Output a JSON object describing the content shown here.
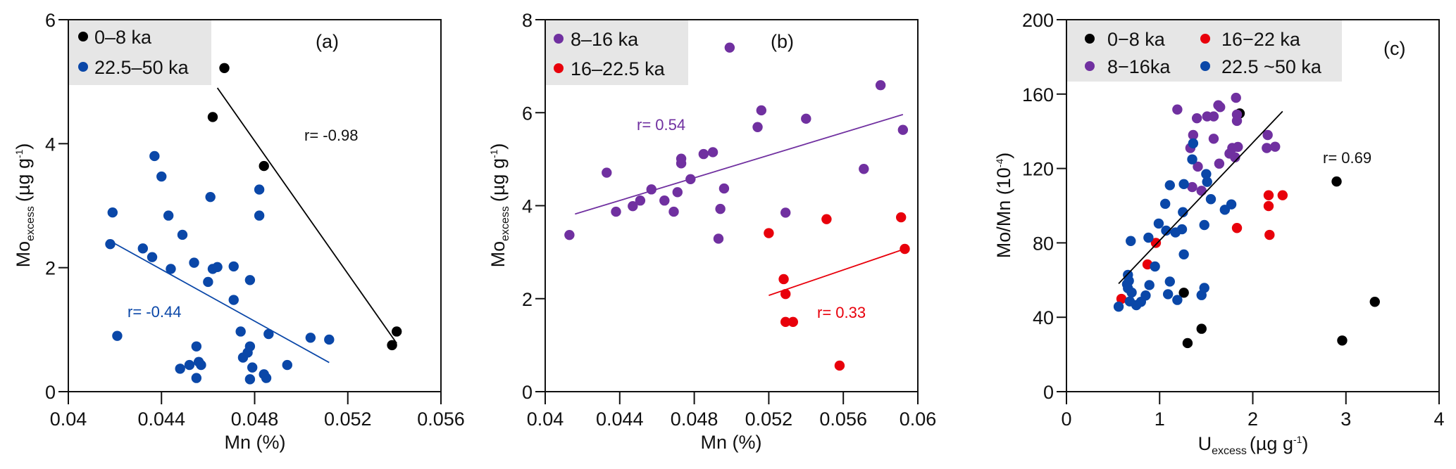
{
  "colors": {
    "black": "#000000",
    "purple": "#7030a0",
    "red": "#e8000b",
    "blue": "#0a47a8",
    "legend_bg": "#e6e6e6"
  },
  "chart_data": [
    {
      "type": "scatter",
      "panel_label": "(a)",
      "xlabel": "Mn (%)",
      "ylabel": {
        "main": "Mo",
        "sub": "excess",
        "unit": "(µg g",
        "sup": "-1",
        "close": ")"
      },
      "xlim": [
        0.04,
        0.056
      ],
      "ylim": [
        0,
        6
      ],
      "xticks": [
        0.04,
        0.044,
        0.048,
        0.052,
        0.056
      ],
      "xtick_labels": [
        "0.04",
        "0.044",
        "0.048",
        "0.052",
        "0.056"
      ],
      "yticks": [
        0,
        2,
        4,
        6
      ],
      "ytick_labels": [
        "0",
        "2",
        "4",
        "6"
      ],
      "legend_position": "top-left",
      "grid": false,
      "series": [
        {
          "name": "0–8 ka",
          "color_key": "black",
          "points": [
            [
              0.0467,
              5.22
            ],
            [
              0.0462,
              4.43
            ],
            [
              0.0484,
              3.64
            ],
            [
              0.0541,
              0.97
            ],
            [
              0.0539,
              0.75
            ]
          ],
          "fit": {
            "from": [
              0.0464,
              4.9
            ],
            "to": [
              0.0541,
              0.78
            ],
            "label": "r= -0.98",
            "label_color_key": "black"
          }
        },
        {
          "name": "22.5–50 ka",
          "color_key": "blue",
          "points": [
            [
              0.0437,
              3.8
            ],
            [
              0.044,
              3.47
            ],
            [
              0.0461,
              3.14
            ],
            [
              0.0482,
              3.26
            ],
            [
              0.0419,
              2.89
            ],
            [
              0.0443,
              2.84
            ],
            [
              0.0482,
              2.84
            ],
            [
              0.0449,
              2.53
            ],
            [
              0.0418,
              2.38
            ],
            [
              0.0432,
              2.31
            ],
            [
              0.0436,
              2.17
            ],
            [
              0.0444,
              1.98
            ],
            [
              0.0454,
              2.08
            ],
            [
              0.0462,
              1.98
            ],
            [
              0.0464,
              2.01
            ],
            [
              0.0471,
              2.02
            ],
            [
              0.046,
              1.77
            ],
            [
              0.0478,
              1.8
            ],
            [
              0.0471,
              1.48
            ],
            [
              0.0421,
              0.9
            ],
            [
              0.0474,
              0.97
            ],
            [
              0.0486,
              0.93
            ],
            [
              0.0504,
              0.87
            ],
            [
              0.0512,
              0.84
            ],
            [
              0.0455,
              0.73
            ],
            [
              0.0478,
              0.73
            ],
            [
              0.0477,
              0.63
            ],
            [
              0.0475,
              0.55
            ],
            [
              0.0448,
              0.37
            ],
            [
              0.0452,
              0.43
            ],
            [
              0.0456,
              0.48
            ],
            [
              0.0457,
              0.43
            ],
            [
              0.0455,
              0.22
            ],
            [
              0.0479,
              0.39
            ],
            [
              0.0494,
              0.43
            ],
            [
              0.0484,
              0.28
            ],
            [
              0.0485,
              0.22
            ],
            [
              0.0478,
              0.2
            ]
          ],
          "fit": {
            "from": [
              0.0417,
              2.45
            ],
            "to": [
              0.0512,
              0.47
            ],
            "label": "r= -0.44",
            "label_color_key": "blue"
          }
        }
      ]
    },
    {
      "type": "scatter",
      "panel_label": "(b)",
      "xlabel": "Mn (%)",
      "ylabel": {
        "main": "Mo",
        "sub": "excess",
        "unit": "(µg g",
        "sup": "-1",
        "close": ")"
      },
      "xlim": [
        0.04,
        0.06
      ],
      "ylim": [
        0,
        8
      ],
      "xticks": [
        0.04,
        0.044,
        0.048,
        0.052,
        0.056,
        0.06
      ],
      "xtick_labels": [
        "0.04",
        "0.044",
        "0.048",
        "0.052",
        "0.056",
        "0.06"
      ],
      "yticks": [
        0,
        2,
        4,
        6,
        8
      ],
      "ytick_labels": [
        "0",
        "2",
        "4",
        "6",
        "8"
      ],
      "legend_position": "top-left",
      "grid": false,
      "series": [
        {
          "name": "8–16 ka",
          "color_key": "purple",
          "points": [
            [
              0.0413,
              3.37
            ],
            [
              0.0433,
              4.71
            ],
            [
              0.0438,
              3.87
            ],
            [
              0.0447,
              3.99
            ],
            [
              0.0451,
              4.11
            ],
            [
              0.0457,
              4.35
            ],
            [
              0.0464,
              4.11
            ],
            [
              0.0469,
              3.87
            ],
            [
              0.0471,
              4.29
            ],
            [
              0.0473,
              4.91
            ],
            [
              0.0473,
              5.01
            ],
            [
              0.0478,
              4.57
            ],
            [
              0.0485,
              5.11
            ],
            [
              0.049,
              5.15
            ],
            [
              0.0496,
              4.37
            ],
            [
              0.0494,
              3.93
            ],
            [
              0.0493,
              3.29
            ],
            [
              0.0529,
              3.85
            ],
            [
              0.0571,
              4.79
            ],
            [
              0.0514,
              5.69
            ],
            [
              0.0516,
              6.05
            ],
            [
              0.054,
              5.87
            ],
            [
              0.058,
              6.59
            ],
            [
              0.0592,
              5.63
            ],
            [
              0.0499,
              7.4
            ]
          ],
          "fit": {
            "from": [
              0.0416,
              3.82
            ],
            "to": [
              0.0592,
              5.96
            ],
            "label": "r= 0.54",
            "label_color_key": "purple"
          }
        },
        {
          "name": "16–22.5 ka",
          "color_key": "red",
          "points": [
            [
              0.052,
              3.41
            ],
            [
              0.0551,
              3.71
            ],
            [
              0.0591,
              3.75
            ],
            [
              0.0593,
              3.07
            ],
            [
              0.0528,
              2.42
            ],
            [
              0.0529,
              2.1
            ],
            [
              0.0529,
              1.5
            ],
            [
              0.0533,
              1.5
            ],
            [
              0.0558,
              0.56
            ]
          ],
          "fit": {
            "from": [
              0.052,
              2.07
            ],
            "to": [
              0.0593,
              3.07
            ],
            "label": "r= 0.33",
            "label_color_key": "red"
          }
        }
      ]
    },
    {
      "type": "scatter",
      "panel_label": "(c)",
      "xlabel": {
        "main": "U",
        "sub": "excess",
        "unit": "(µg g",
        "sup": "-1",
        "close": ")"
      },
      "ylabel": {
        "main": "Mo/Mn (10",
        "sup": "-4",
        "close": ")"
      },
      "xlim": [
        0,
        4
      ],
      "ylim": [
        0,
        200
      ],
      "xticks": [
        0,
        1,
        2,
        3,
        4
      ],
      "xtick_labels": [
        "0",
        "1",
        "2",
        "3",
        "4"
      ],
      "yticks": [
        0,
        40,
        80,
        120,
        160,
        200
      ],
      "ytick_labels": [
        "0",
        "40",
        "80",
        "120",
        "160",
        "200"
      ],
      "legend_position": "top-left",
      "grid": false,
      "series": [
        {
          "name": "0−8 ka",
          "color_key": "black",
          "points": [
            [
              1.86,
              149.6
            ],
            [
              2.9,
              113
            ],
            [
              1.26,
              53.2
            ],
            [
              1.3,
              26.1
            ],
            [
              1.45,
              33.8
            ],
            [
              2.96,
              27.5
            ],
            [
              3.31,
              48.3
            ]
          ]
        },
        {
          "name": "8−16ka",
          "color_key": "purple",
          "points": [
            [
              1.19,
              151.7
            ],
            [
              1.4,
              147
            ],
            [
              1.51,
              148
            ],
            [
              1.58,
              148
            ],
            [
              1.63,
              154
            ],
            [
              1.65,
              153
            ],
            [
              1.82,
              158
            ],
            [
              1.83,
              149
            ],
            [
              1.83,
              145.6
            ],
            [
              1.36,
              138
            ],
            [
              1.58,
              136
            ],
            [
              1.33,
              131
            ],
            [
              1.41,
              121
            ],
            [
              1.64,
              122.6
            ],
            [
              1.78,
              131
            ],
            [
              1.84,
              131.6
            ],
            [
              1.75,
              128
            ],
            [
              1.81,
              126
            ],
            [
              2.16,
              138
            ],
            [
              2.15,
              131
            ],
            [
              2.24,
              131.7
            ],
            [
              1.35,
              110
            ],
            [
              1.45,
              108
            ]
          ]
        },
        {
          "name": "16−22 ka",
          "color_key": "red",
          "points": [
            [
              2.17,
              105.6
            ],
            [
              2.32,
              105.6
            ],
            [
              2.17,
              99.8
            ],
            [
              1.83,
              88
            ],
            [
              2.18,
              84.3
            ],
            [
              0.96,
              80
            ],
            [
              0.87,
              68.4
            ],
            [
              0.59,
              49.9
            ]
          ]
        },
        {
          "name": "22.5 ~50 ka",
          "color_key": "blue",
          "points": [
            [
              1.36,
              133.5
            ],
            [
              1.35,
              124.9
            ],
            [
              1.5,
              117
            ],
            [
              1.51,
              112.8
            ],
            [
              1.11,
              111
            ],
            [
              1.26,
              111.6
            ],
            [
              1.55,
              103.5
            ],
            [
              1.06,
              101
            ],
            [
              1.77,
              100.7
            ],
            [
              1.7,
              97.8
            ],
            [
              1.25,
              96.5
            ],
            [
              0.99,
              90.4
            ],
            [
              1.48,
              89.6
            ],
            [
              1.07,
              86.6
            ],
            [
              1.17,
              85.6
            ],
            [
              1.24,
              87.3
            ],
            [
              0.88,
              82.8
            ],
            [
              0.69,
              81
            ],
            [
              1.26,
              73.8
            ],
            [
              0.95,
              67.3
            ],
            [
              0.66,
              62.8
            ],
            [
              0.67,
              59.6
            ],
            [
              0.65,
              57.8
            ],
            [
              0.66,
              55.6
            ],
            [
              0.7,
              53.3
            ],
            [
              0.68,
              48.5
            ],
            [
              0.56,
              45.7
            ],
            [
              0.75,
              46.5
            ],
            [
              0.8,
              48.3
            ],
            [
              0.85,
              51.7
            ],
            [
              0.89,
              57.3
            ],
            [
              1.09,
              52.4
            ],
            [
              1.11,
              59.2
            ],
            [
              1.19,
              49.3
            ],
            [
              1.45,
              51.9
            ],
            [
              1.48,
              55.8
            ]
          ]
        }
      ],
      "fit": {
        "from": [
          0.56,
          58.1
        ],
        "to": [
          2.32,
          150.7
        ],
        "label": "r= 0.69",
        "label_color_key": "black"
      }
    }
  ]
}
